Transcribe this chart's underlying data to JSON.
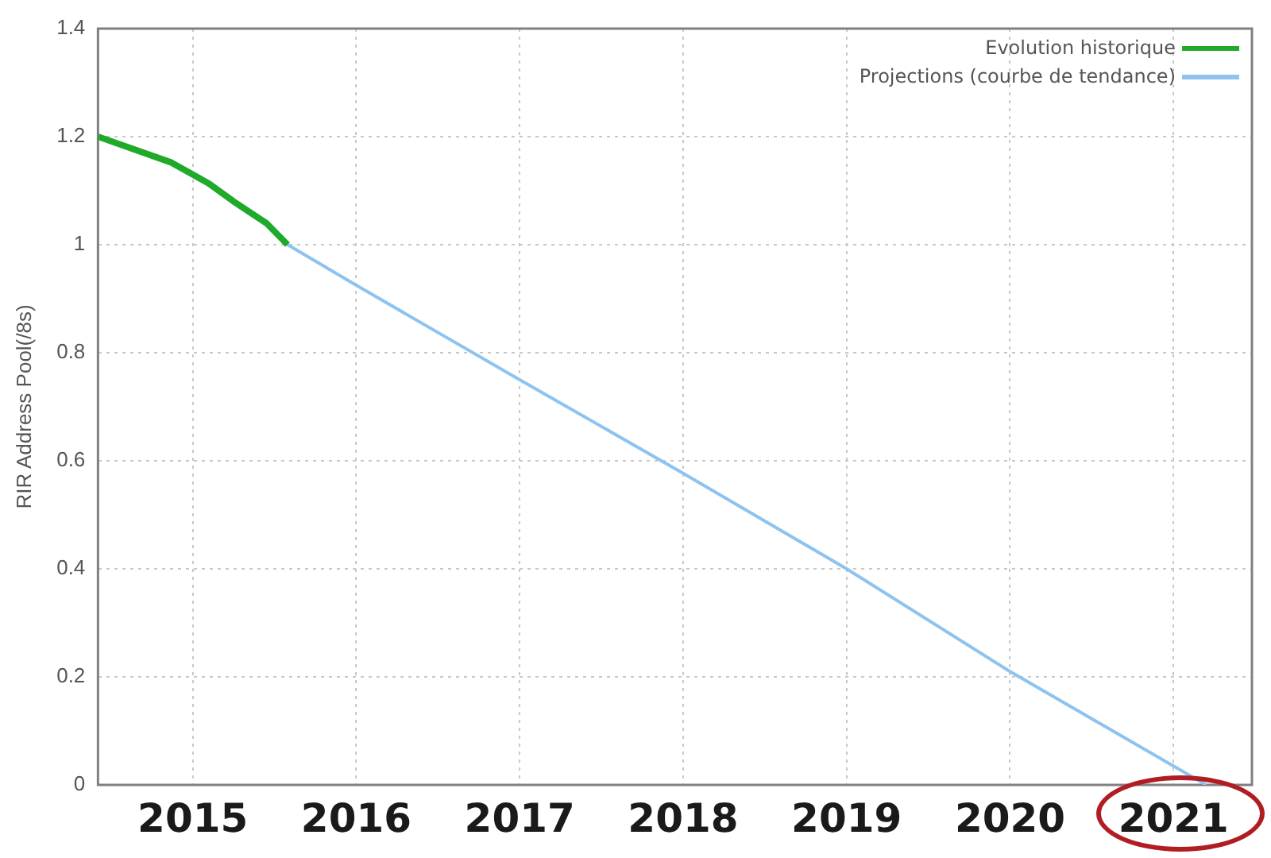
{
  "chart_data": {
    "type": "line",
    "ylabel": "RIR Address Pool(/8s)",
    "xlim": [
      2014.42,
      2021.48
    ],
    "xticks": [
      2015,
      2016,
      2017,
      2018,
      2019,
      2020,
      2021
    ],
    "ylim": [
      0,
      1.4
    ],
    "yticks": [
      0,
      0.2,
      0.4,
      0.6,
      0.8,
      1,
      1.2,
      1.4
    ],
    "grid": true,
    "legend": "top right",
    "marker": "none",
    "series": [
      {
        "name": "Evolution historique",
        "color": "#1faa2a",
        "x": [
          2014.42,
          2014.87,
          2015.1,
          2015.25,
          2015.45,
          2015.58
        ],
        "values": [
          1.2,
          1.152,
          1.113,
          1.08,
          1.04,
          1.0
        ]
      },
      {
        "name": "Projections (courbe de tendance)",
        "color": "#8ec3f0",
        "x": [
          2015.58,
          2016,
          2017,
          2018,
          2019,
          2020,
          2021.2
        ],
        "values": [
          1.0,
          0.925,
          0.75,
          0.577,
          0.4,
          0.21,
          0
        ]
      }
    ]
  }
}
